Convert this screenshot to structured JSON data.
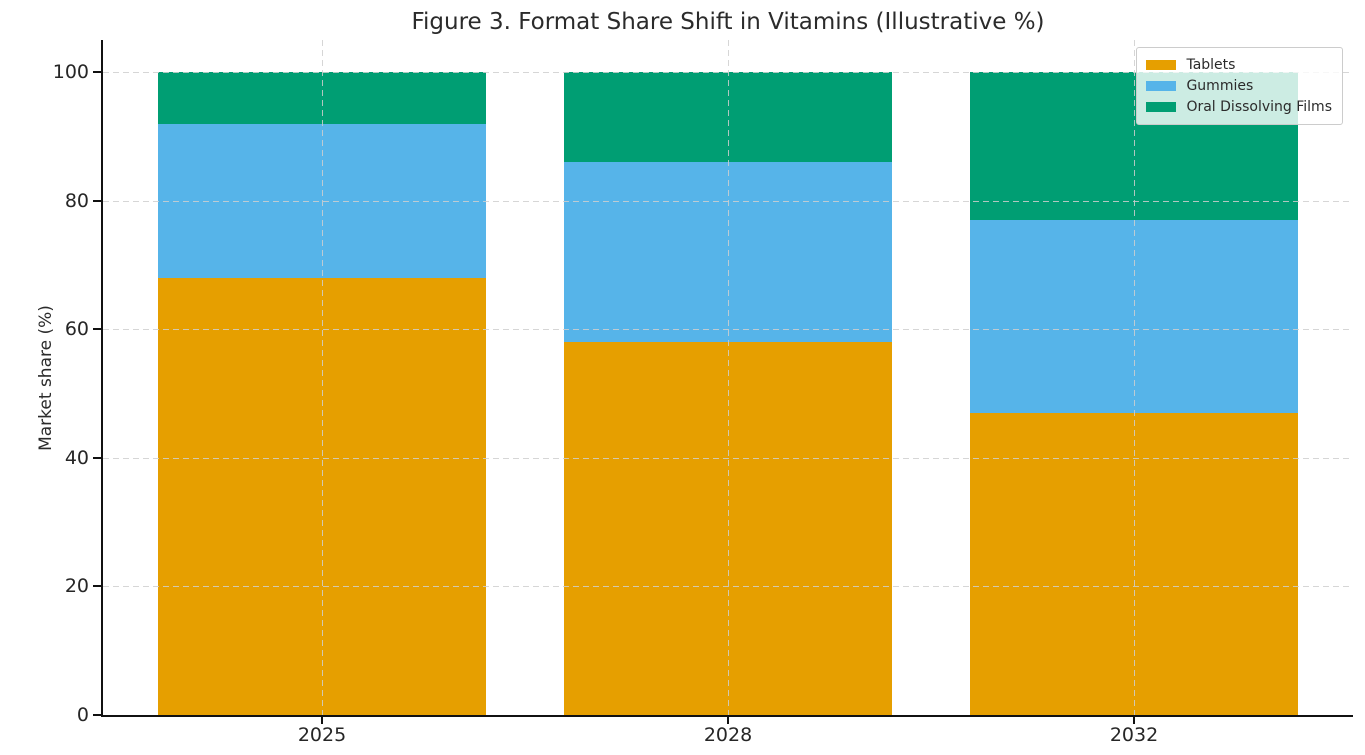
{
  "chart_data": {
    "type": "bar",
    "stacked": true,
    "title": "Figure 3. Format Share Shift in Vitamins (Illustrative %)",
    "categories": [
      "2025",
      "2028",
      "2032"
    ],
    "series": [
      {
        "name": "Tablets",
        "color": "#E69F00",
        "values": [
          68,
          58,
          47
        ]
      },
      {
        "name": "Gummies",
        "color": "#56B4E9",
        "values": [
          24,
          28,
          30
        ]
      },
      {
        "name": "Oral Dissolving Films",
        "color": "#009E73",
        "values": [
          8,
          14,
          23
        ]
      }
    ],
    "stack_tops": {
      "2025": [
        68,
        92,
        100
      ],
      "2028": [
        58,
        86,
        100
      ],
      "2032": [
        47,
        77,
        100
      ]
    },
    "xlabel": "",
    "ylabel": "Market share (%)",
    "yticks": [
      0,
      20,
      40,
      60,
      80,
      100
    ],
    "ylim": [
      0,
      105
    ],
    "grid": {
      "visible": true,
      "style": "dashed",
      "axes": "both",
      "color": "#cccccc"
    },
    "legend": {
      "position": "upper-right"
    }
  },
  "colors": {
    "background": "#ffffff",
    "text": "#2b2b2b",
    "spine": "#111111"
  }
}
